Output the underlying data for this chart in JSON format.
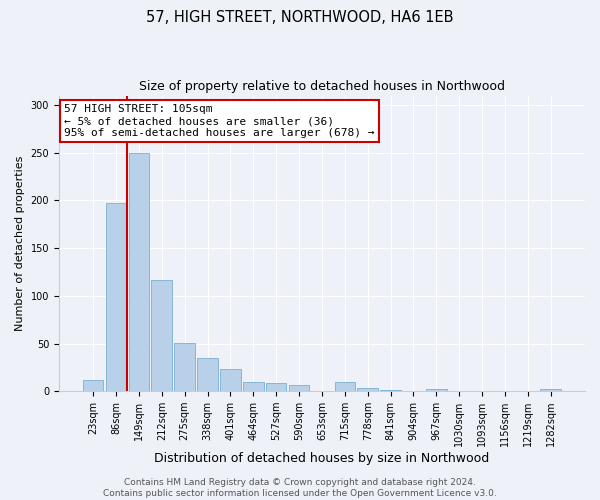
{
  "title": "57, HIGH STREET, NORTHWOOD, HA6 1EB",
  "subtitle": "Size of property relative to detached houses in Northwood",
  "xlabel": "Distribution of detached houses by size in Northwood",
  "ylabel": "Number of detached properties",
  "bar_labels": [
    "23sqm",
    "86sqm",
    "149sqm",
    "212sqm",
    "275sqm",
    "338sqm",
    "401sqm",
    "464sqm",
    "527sqm",
    "590sqm",
    "653sqm",
    "715sqm",
    "778sqm",
    "841sqm",
    "904sqm",
    "967sqm",
    "1030sqm",
    "1093sqm",
    "1156sqm",
    "1219sqm",
    "1282sqm"
  ],
  "bar_values": [
    12,
    197,
    250,
    117,
    51,
    35,
    23,
    10,
    9,
    6,
    0,
    10,
    3,
    1,
    0,
    2,
    0,
    0,
    0,
    0,
    2
  ],
  "bar_color": "#b8d0e8",
  "bar_edge_color": "#7aafd4",
  "vline_color": "#cc0000",
  "vline_pos": 1.5,
  "ylim": [
    0,
    310
  ],
  "yticks": [
    0,
    50,
    100,
    150,
    200,
    250,
    300
  ],
  "annotation_text": "57 HIGH STREET: 105sqm\n← 5% of detached houses are smaller (36)\n95% of semi-detached houses are larger (678) →",
  "annotation_box_facecolor": "#ffffff",
  "annotation_box_edgecolor": "#cc0000",
  "footer_line1": "Contains HM Land Registry data © Crown copyright and database right 2024.",
  "footer_line2": "Contains public sector information licensed under the Open Government Licence v3.0.",
  "background_color": "#eef2f8",
  "grid_color": "#ffffff",
  "title_fontsize": 10.5,
  "subtitle_fontsize": 9,
  "xlabel_fontsize": 9,
  "ylabel_fontsize": 8,
  "tick_fontsize": 7,
  "annotation_fontsize": 8,
  "footer_fontsize": 6.5
}
